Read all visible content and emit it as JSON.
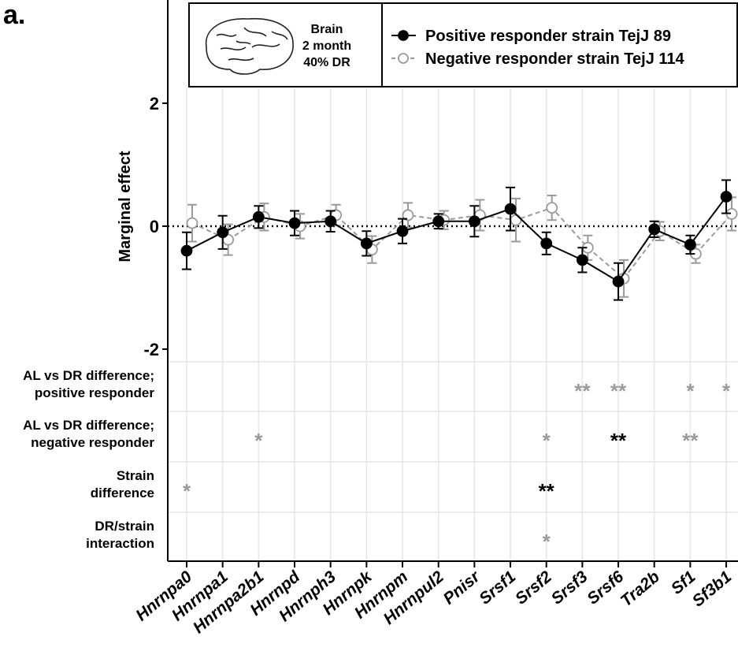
{
  "panel_label": "a.",
  "chart_data": {
    "type": "line",
    "ylabel": "Marginal effect",
    "ylim": [
      -2.2,
      3.6
    ],
    "yticks": [
      -2,
      0,
      2
    ],
    "reference_line": 0,
    "inset": [
      "Brain",
      "2 month",
      "40% DR"
    ],
    "categories": [
      "Hnrnpa0",
      "Hnrnpa1",
      "Hnrnpa2b1",
      "Hnrnpd",
      "Hnrnph3",
      "Hnrnpk",
      "Hnrnpm",
      "Hnrnpul2",
      "Pnisr",
      "Srsf1",
      "Srsf2",
      "Srsf3",
      "Srsf6",
      "Tra2b",
      "Sf1",
      "Sf3b1"
    ],
    "series": [
      {
        "name": "Positive responder strain TejJ 89",
        "color": "#000000",
        "marker": "filled",
        "values": [
          -0.4,
          -0.1,
          0.15,
          0.05,
          0.08,
          -0.28,
          -0.08,
          0.08,
          0.08,
          0.28,
          -0.28,
          -0.55,
          -0.9,
          -0.05,
          -0.3,
          0.48
        ],
        "errors": [
          0.3,
          0.27,
          0.18,
          0.2,
          0.17,
          0.2,
          0.2,
          0.12,
          0.25,
          0.35,
          0.18,
          0.2,
          0.3,
          0.13,
          0.15,
          0.27
        ]
      },
      {
        "name": "Negative responder strain TejJ 114",
        "color": "#9a9a9a",
        "marker": "open",
        "values": [
          0.05,
          -0.22,
          0.15,
          0.0,
          0.18,
          -0.38,
          0.18,
          0.1,
          0.18,
          0.1,
          0.3,
          -0.35,
          -0.85,
          -0.08,
          -0.45,
          0.2
        ],
        "errors": [
          0.3,
          0.25,
          0.22,
          0.2,
          0.17,
          0.22,
          0.2,
          0.15,
          0.25,
          0.35,
          0.2,
          0.2,
          0.3,
          0.15,
          0.15,
          0.27
        ]
      }
    ],
    "significance_rows": [
      {
        "label": [
          "AL vs DR difference;",
          "positive responder"
        ],
        "stars": [
          null,
          null,
          null,
          null,
          null,
          null,
          null,
          null,
          null,
          null,
          null,
          "**",
          "**",
          null,
          "*",
          "*"
        ],
        "colors": [
          null,
          null,
          null,
          null,
          null,
          null,
          null,
          null,
          null,
          null,
          null,
          "#9a9a9a",
          "#9a9a9a",
          null,
          "#9a9a9a",
          "#9a9a9a"
        ]
      },
      {
        "label": [
          "AL vs DR difference;",
          "negative responder"
        ],
        "stars": [
          null,
          null,
          "*",
          null,
          null,
          null,
          null,
          null,
          null,
          null,
          "*",
          null,
          "**",
          null,
          "**",
          null
        ],
        "colors": [
          null,
          null,
          "#9a9a9a",
          null,
          null,
          null,
          null,
          null,
          null,
          null,
          "#9a9a9a",
          null,
          "#000000",
          null,
          "#9a9a9a",
          null
        ]
      },
      {
        "label": [
          "Strain",
          "difference"
        ],
        "stars": [
          "*",
          null,
          null,
          null,
          null,
          null,
          null,
          null,
          null,
          null,
          "**",
          null,
          null,
          null,
          null,
          null
        ],
        "colors": [
          "#9a9a9a",
          null,
          null,
          null,
          null,
          null,
          null,
          null,
          null,
          null,
          "#000000",
          null,
          null,
          null,
          null,
          null
        ]
      },
      {
        "label": [
          "DR/strain",
          "interaction"
        ],
        "stars": [
          null,
          null,
          null,
          null,
          null,
          null,
          null,
          null,
          null,
          null,
          "*",
          null,
          null,
          null,
          null,
          null
        ],
        "colors": [
          null,
          null,
          null,
          null,
          null,
          null,
          null,
          null,
          null,
          null,
          "#9a9a9a",
          null,
          null,
          null,
          null,
          null
        ]
      }
    ]
  }
}
